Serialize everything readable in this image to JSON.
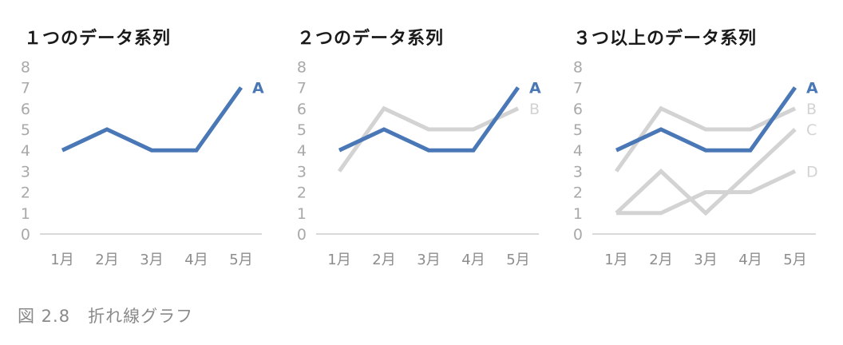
{
  "caption": "図 2.8　折れ線グラフ",
  "colors": {
    "highlight": "#4a78b6",
    "muted": "#d3d3d3",
    "axis": "#d9d9d9",
    "tick_text": "#a9a9a9"
  },
  "chart_data": [
    {
      "type": "line",
      "title": "１つのデータ系列",
      "categories": [
        "1月",
        "2月",
        "3月",
        "4月",
        "5月"
      ],
      "ylim": [
        0,
        8
      ],
      "yticks": [
        0,
        1,
        2,
        3,
        4,
        5,
        6,
        7,
        8
      ],
      "grid": false,
      "series": [
        {
          "name": "A",
          "values": [
            4,
            5,
            4,
            4,
            7
          ],
          "color": "#4a78b6"
        }
      ]
    },
    {
      "type": "line",
      "title": "２つのデータ系列",
      "categories": [
        "1月",
        "2月",
        "3月",
        "4月",
        "5月"
      ],
      "ylim": [
        0,
        8
      ],
      "yticks": [
        0,
        1,
        2,
        3,
        4,
        5,
        6,
        7,
        8
      ],
      "grid": false,
      "series": [
        {
          "name": "B",
          "values": [
            3,
            6,
            5,
            5,
            6
          ],
          "color": "#d3d3d3"
        },
        {
          "name": "A",
          "values": [
            4,
            5,
            4,
            4,
            7
          ],
          "color": "#4a78b6"
        }
      ]
    },
    {
      "type": "line",
      "title": "３つ以上のデータ系列",
      "categories": [
        "1月",
        "2月",
        "3月",
        "4月",
        "5月"
      ],
      "ylim": [
        0,
        8
      ],
      "yticks": [
        0,
        1,
        2,
        3,
        4,
        5,
        6,
        7,
        8
      ],
      "grid": false,
      "series": [
        {
          "name": "B",
          "values": [
            3,
            6,
            5,
            5,
            6
          ],
          "color": "#d3d3d3"
        },
        {
          "name": "C",
          "values": [
            1,
            3,
            1,
            3,
            5
          ],
          "color": "#d3d3d3"
        },
        {
          "name": "D",
          "values": [
            1,
            1,
            2,
            2,
            3
          ],
          "color": "#d3d3d3"
        },
        {
          "name": "A",
          "values": [
            4,
            5,
            4,
            4,
            7
          ],
          "color": "#4a78b6"
        }
      ]
    }
  ]
}
